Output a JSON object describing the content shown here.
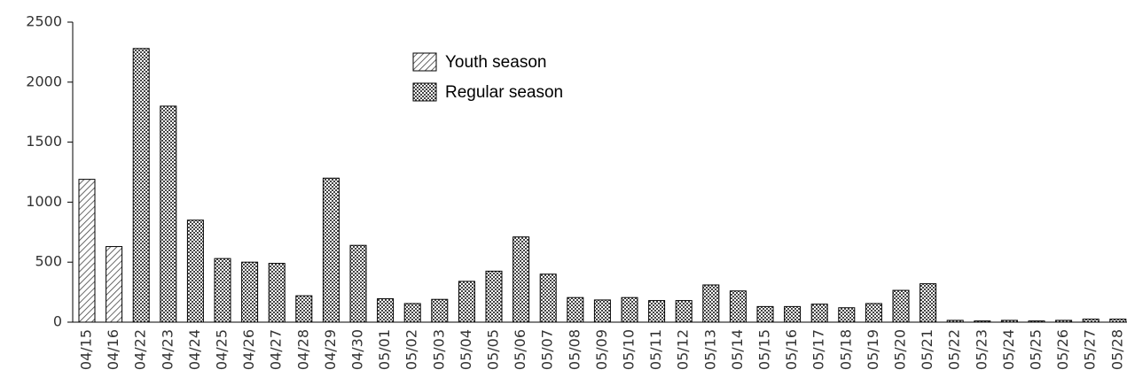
{
  "chart_data": {
    "type": "bar",
    "categories": [
      "04/15",
      "04/16",
      "04/22",
      "04/23",
      "04/24",
      "04/25",
      "04/26",
      "04/27",
      "04/28",
      "04/29",
      "04/30",
      "05/01",
      "05/02",
      "05/03",
      "05/04",
      "05/05",
      "05/06",
      "05/07",
      "05/08",
      "05/09",
      "05/10",
      "05/11",
      "05/12",
      "05/13",
      "05/14",
      "05/15",
      "05/16",
      "05/17",
      "05/18",
      "05/19",
      "05/20",
      "05/21",
      "05/22",
      "05/23",
      "05/24",
      "05/25",
      "05/26",
      "05/27",
      "05/28"
    ],
    "series": [
      {
        "name": "Youth season",
        "color": "#444444",
        "values": [
          1190,
          630,
          null,
          null,
          null,
          null,
          null,
          null,
          null,
          null,
          null,
          null,
          null,
          null,
          null,
          null,
          null,
          null,
          null,
          null,
          null,
          null,
          null,
          null,
          null,
          null,
          null,
          null,
          null,
          null,
          null,
          null,
          null,
          null,
          null,
          null,
          null,
          null,
          null
        ]
      },
      {
        "name": "Regular season",
        "color": "#444444",
        "values": [
          null,
          null,
          2280,
          1800,
          850,
          530,
          500,
          490,
          220,
          1200,
          640,
          195,
          155,
          190,
          340,
          425,
          710,
          400,
          205,
          185,
          205,
          180,
          180,
          310,
          260,
          130,
          130,
          150,
          120,
          155,
          265,
          320,
          15,
          10,
          15,
          10,
          15,
          25,
          25
        ]
      }
    ],
    "ylim": [
      0,
      2500
    ],
    "yticks": [
      0,
      500,
      1000,
      1500,
      2000,
      2500
    ]
  }
}
